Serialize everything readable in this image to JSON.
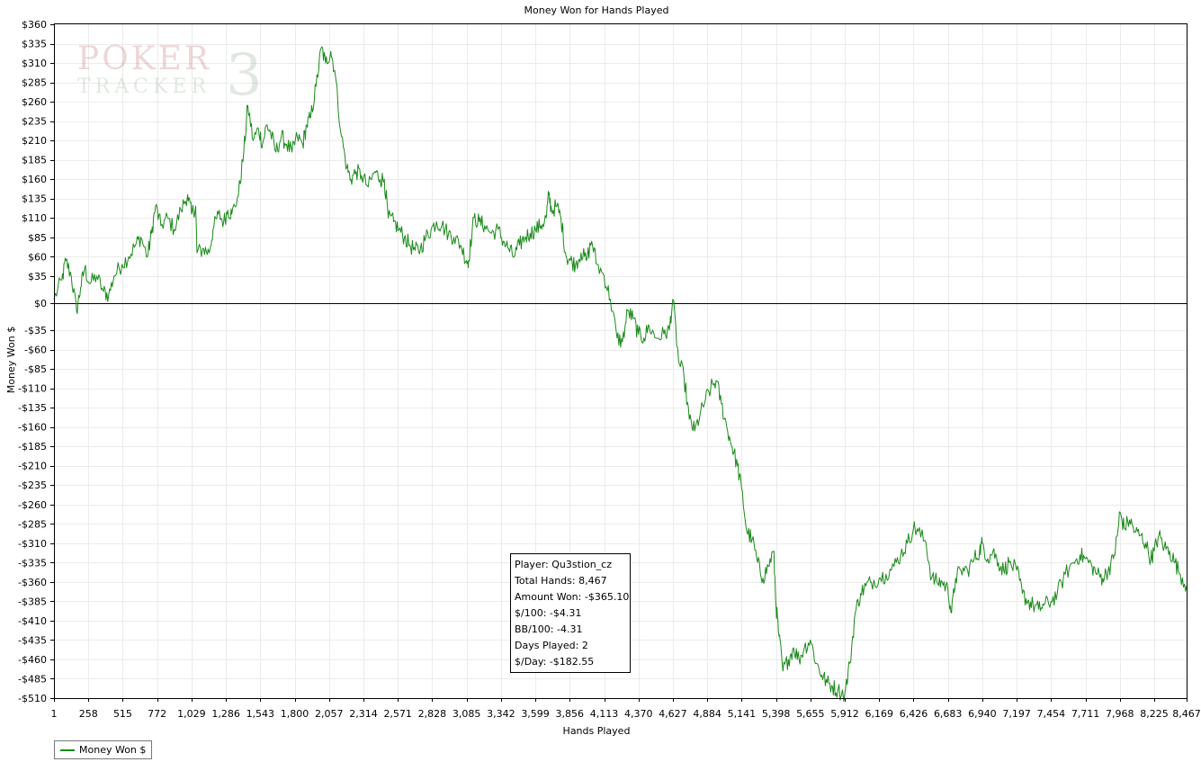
{
  "chart_data": {
    "type": "line",
    "title": "Money Won for Hands Played",
    "xlabel": "Hands Played",
    "ylabel": "Money Won $",
    "xlim": [
      1,
      8467
    ],
    "ylim": [
      -510,
      360
    ],
    "x_ticks": [
      1,
      258,
      515,
      772,
      1029,
      1286,
      1543,
      1800,
      2057,
      2314,
      2571,
      2828,
      3085,
      3342,
      3599,
      3856,
      4113,
      4370,
      4627,
      4884,
      5141,
      5398,
      5655,
      5912,
      6169,
      6426,
      6683,
      6940,
      7197,
      7454,
      7711,
      7968,
      8225,
      8467
    ],
    "x_tick_labels": [
      "1",
      "258",
      "515",
      "772",
      "1,029",
      "1,286",
      "1,543",
      "1,800",
      "2,057",
      "2,314",
      "2,571",
      "2,828",
      "3,085",
      "3,342",
      "3,599",
      "3,856",
      "4,113",
      "4,370",
      "4,627",
      "4,884",
      "5,141",
      "5,398",
      "5,655",
      "5,912",
      "6,169",
      "6,426",
      "6,683",
      "6,940",
      "7,197",
      "7,454",
      "7,711",
      "7,968",
      "8,225",
      "8,467"
    ],
    "y_ticks": [
      360,
      335,
      310,
      285,
      260,
      235,
      210,
      185,
      160,
      135,
      110,
      85,
      60,
      35,
      0,
      -35,
      -60,
      -85,
      -110,
      -135,
      -160,
      -185,
      -210,
      -235,
      -260,
      -285,
      -310,
      -335,
      -360,
      -385,
      -410,
      -435,
      -460,
      -485,
      -510
    ],
    "y_tick_labels": [
      "$360",
      "$335",
      "$310",
      "$285",
      "$260",
      "$235",
      "$210",
      "$185",
      "$160",
      "$135",
      "$110",
      "$85",
      "$60",
      "$35",
      "$0",
      "-$35",
      "-$60",
      "-$85",
      "-$110",
      "-$135",
      "-$160",
      "-$185",
      "-$210",
      "-$235",
      "-$260",
      "-$285",
      "-$310",
      "-$335",
      "-$360",
      "-$385",
      "-$410",
      "-$435",
      "-$460",
      "-$485",
      "-$510"
    ],
    "grid": true,
    "legend_position": "bottom-left",
    "series": [
      {
        "name": "Money Won $",
        "color": "#1a8a1a",
        "points": [
          [
            1,
            5
          ],
          [
            60,
            30
          ],
          [
            90,
            55
          ],
          [
            130,
            35
          ],
          [
            170,
            -10
          ],
          [
            200,
            20
          ],
          [
            230,
            45
          ],
          [
            270,
            25
          ],
          [
            320,
            35
          ],
          [
            370,
            15
          ],
          [
            410,
            10
          ],
          [
            450,
            35
          ],
          [
            510,
            50
          ],
          [
            560,
            60
          ],
          [
            610,
            75
          ],
          [
            650,
            85
          ],
          [
            700,
            60
          ],
          [
            730,
            90
          ],
          [
            760,
            125
          ],
          [
            800,
            100
          ],
          [
            850,
            110
          ],
          [
            900,
            95
          ],
          [
            950,
            120
          ],
          [
            1000,
            140
          ],
          [
            1029,
            115
          ],
          [
            1060,
            125
          ],
          [
            1070,
            65
          ],
          [
            1120,
            70
          ],
          [
            1160,
            65
          ],
          [
            1190,
            95
          ],
          [
            1230,
            115
          ],
          [
            1270,
            105
          ],
          [
            1300,
            120
          ],
          [
            1330,
            115
          ],
          [
            1380,
            140
          ],
          [
            1420,
            195
          ],
          [
            1450,
            255
          ],
          [
            1490,
            210
          ],
          [
            1530,
            225
          ],
          [
            1560,
            205
          ],
          [
            1590,
            230
          ],
          [
            1620,
            220
          ],
          [
            1660,
            195
          ],
          [
            1700,
            215
          ],
          [
            1740,
            205
          ],
          [
            1780,
            195
          ],
          [
            1820,
            215
          ],
          [
            1860,
            205
          ],
          [
            1890,
            230
          ],
          [
            1920,
            240
          ],
          [
            1960,
            280
          ],
          [
            2000,
            330
          ],
          [
            2030,
            310
          ],
          [
            2070,
            325
          ],
          [
            2100,
            300
          ],
          [
            2150,
            215
          ],
          [
            2190,
            175
          ],
          [
            2220,
            160
          ],
          [
            2260,
            170
          ],
          [
            2300,
            165
          ],
          [
            2350,
            150
          ],
          [
            2400,
            170
          ],
          [
            2440,
            160
          ],
          [
            2470,
            160
          ],
          [
            2500,
            110
          ],
          [
            2540,
            105
          ],
          [
            2580,
            95
          ],
          [
            2620,
            85
          ],
          [
            2660,
            75
          ],
          [
            2700,
            68
          ],
          [
            2740,
            70
          ],
          [
            2780,
            85
          ],
          [
            2820,
            95
          ],
          [
            2860,
            105
          ],
          [
            2900,
            100
          ],
          [
            2950,
            90
          ],
          [
            2990,
            85
          ],
          [
            3040,
            75
          ],
          [
            3085,
            55
          ],
          [
            3100,
            55
          ],
          [
            3140,
            110
          ],
          [
            3180,
            105
          ],
          [
            3220,
            100
          ],
          [
            3270,
            90
          ],
          [
            3320,
            95
          ],
          [
            3360,
            80
          ],
          [
            3400,
            70
          ],
          [
            3440,
            60
          ],
          [
            3480,
            75
          ],
          [
            3520,
            85
          ],
          [
            3560,
            90
          ],
          [
            3600,
            95
          ],
          [
            3640,
            100
          ],
          [
            3680,
            110
          ],
          [
            3699,
            140
          ],
          [
            3720,
            120
          ],
          [
            3760,
            125
          ],
          [
            3790,
            110
          ],
          [
            3830,
            60
          ],
          [
            3860,
            55
          ],
          [
            3900,
            50
          ],
          [
            3940,
            65
          ],
          [
            3980,
            55
          ],
          [
            4020,
            80
          ],
          [
            4060,
            50
          ],
          [
            4113,
            35
          ],
          [
            4160,
            5
          ],
          [
            4210,
            -45
          ],
          [
            4250,
            -50
          ],
          [
            4290,
            -10
          ],
          [
            4330,
            -20
          ],
          [
            4370,
            -40
          ],
          [
            4410,
            -45
          ],
          [
            4450,
            -30
          ],
          [
            4500,
            -45
          ],
          [
            4560,
            -40
          ],
          [
            4600,
            -35
          ],
          [
            4627,
            5
          ],
          [
            4670,
            -75
          ],
          [
            4710,
            -95
          ],
          [
            4750,
            -150
          ],
          [
            4790,
            -165
          ],
          [
            4830,
            -145
          ],
          [
            4870,
            -125
          ],
          [
            4910,
            -110
          ],
          [
            4950,
            -100
          ],
          [
            4990,
            -130
          ],
          [
            5030,
            -160
          ],
          [
            5070,
            -185
          ],
          [
            5110,
            -210
          ],
          [
            5141,
            -240
          ],
          [
            5180,
            -295
          ],
          [
            5220,
            -305
          ],
          [
            5260,
            -335
          ],
          [
            5300,
            -355
          ],
          [
            5340,
            -340
          ],
          [
            5380,
            -320
          ],
          [
            5398,
            -390
          ],
          [
            5420,
            -430
          ],
          [
            5450,
            -475
          ],
          [
            5490,
            -460
          ],
          [
            5530,
            -445
          ],
          [
            5570,
            -460
          ],
          [
            5610,
            -445
          ],
          [
            5655,
            -435
          ],
          [
            5700,
            -465
          ],
          [
            5740,
            -480
          ],
          [
            5780,
            -490
          ],
          [
            5820,
            -495
          ],
          [
            5860,
            -500
          ],
          [
            5912,
            -505
          ],
          [
            5950,
            -465
          ],
          [
            5990,
            -400
          ],
          [
            6030,
            -375
          ],
          [
            6070,
            -365
          ],
          [
            6110,
            -360
          ],
          [
            6169,
            -355
          ],
          [
            6220,
            -350
          ],
          [
            6280,
            -340
          ],
          [
            6330,
            -325
          ],
          [
            6380,
            -310
          ],
          [
            6426,
            -290
          ],
          [
            6460,
            -295
          ],
          [
            6520,
            -310
          ],
          [
            6560,
            -355
          ],
          [
            6600,
            -360
          ],
          [
            6640,
            -360
          ],
          [
            6683,
            -370
          ],
          [
            6710,
            -400
          ],
          [
            6740,
            -355
          ],
          [
            6780,
            -345
          ],
          [
            6830,
            -345
          ],
          [
            6880,
            -330
          ],
          [
            6920,
            -320
          ],
          [
            6940,
            -310
          ],
          [
            6980,
            -330
          ],
          [
            7020,
            -320
          ],
          [
            7060,
            -335
          ],
          [
            7100,
            -345
          ],
          [
            7140,
            -335
          ],
          [
            7197,
            -345
          ],
          [
            7240,
            -375
          ],
          [
            7280,
            -385
          ],
          [
            7320,
            -390
          ],
          [
            7360,
            -395
          ],
          [
            7400,
            -390
          ],
          [
            7454,
            -385
          ],
          [
            7500,
            -375
          ],
          [
            7560,
            -350
          ],
          [
            7620,
            -335
          ],
          [
            7670,
            -325
          ],
          [
            7711,
            -330
          ],
          [
            7760,
            -340
          ],
          [
            7800,
            -350
          ],
          [
            7840,
            -355
          ],
          [
            7880,
            -345
          ],
          [
            7920,
            -330
          ],
          [
            7950,
            -300
          ],
          [
            7968,
            -270
          ],
          [
            8000,
            -290
          ],
          [
            8040,
            -280
          ],
          [
            8080,
            -295
          ],
          [
            8120,
            -300
          ],
          [
            8160,
            -310
          ],
          [
            8200,
            -330
          ],
          [
            8225,
            -320
          ],
          [
            8260,
            -300
          ],
          [
            8300,
            -315
          ],
          [
            8340,
            -320
          ],
          [
            8380,
            -335
          ],
          [
            8420,
            -350
          ],
          [
            8467,
            -365
          ]
        ]
      }
    ]
  },
  "stats": {
    "player": "Player: Qu3stion_cz",
    "total_hands": "Total Hands: 8,467",
    "amount_won": "Amount Won: -$365.10",
    "per_100": "$/100: -$4.31",
    "bb_per_100": "BB/100: -4.31",
    "days_played": "Days Played: 2",
    "per_day": "$/Day: -$182.55"
  },
  "legend": {
    "label": "Money Won $"
  },
  "watermark": {
    "line1": "POKER",
    "line2": "TRACKER",
    "number": "3"
  }
}
